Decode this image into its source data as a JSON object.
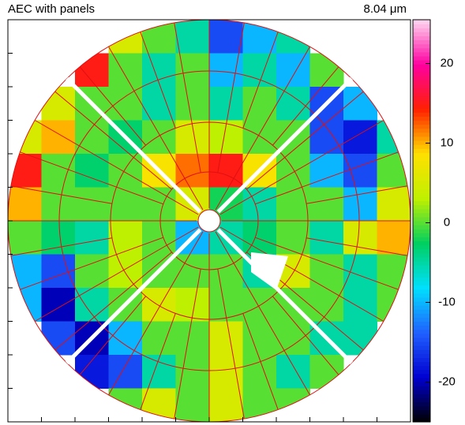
{
  "chart_data": {
    "type": "heatmap",
    "title": "AEC with panels",
    "subtitle": "8.04 μm",
    "z": [
      [
        null,
        null,
        null,
        5,
        0,
        -5,
        -15,
        -10,
        -5,
        null,
        null,
        null
      ],
      [
        null,
        null,
        15,
        0,
        -5,
        0,
        -10,
        -5,
        -10,
        0,
        null,
        null
      ],
      [
        null,
        5,
        0,
        0,
        -5,
        0,
        -5,
        0,
        -5,
        -15,
        -10,
        null
      ],
      [
        5,
        10,
        0,
        -3,
        0,
        5,
        3,
        0,
        0,
        -15,
        -18,
        -5
      ],
      [
        15,
        0,
        -3,
        0,
        8,
        12,
        15,
        8,
        0,
        -10,
        -15,
        0
      ],
      [
        10,
        0,
        0,
        0,
        0,
        5,
        -2,
        -5,
        0,
        0,
        -10,
        5
      ],
      [
        0,
        -3,
        -5,
        3,
        0,
        -10,
        -5,
        -3,
        0,
        -5,
        5,
        10
      ],
      [
        -10,
        -15,
        0,
        3,
        0,
        0,
        0,
        -5,
        5,
        0,
        -5,
        0
      ],
      [
        -10,
        -20,
        -5,
        0,
        5,
        3,
        0,
        0,
        0,
        0,
        -5,
        0
      ],
      [
        null,
        -15,
        -20,
        -10,
        0,
        0,
        5,
        0,
        0,
        -5,
        -5,
        null
      ],
      [
        null,
        null,
        -18,
        -15,
        -5,
        0,
        5,
        0,
        -5,
        0,
        null,
        null
      ],
      [
        null,
        null,
        null,
        0,
        5,
        0,
        5,
        0,
        0,
        null,
        null,
        null
      ]
    ],
    "zlim": [
      -25,
      25.5
    ],
    "zticks": [
      -20,
      -10,
      0,
      10,
      20
    ],
    "colormap": [
      "#000000",
      "#0000d0",
      "#2060ff",
      "#00e0ff",
      "#00d060",
      "#c0f000",
      "#ffe000",
      "#ff2000",
      "#ff00a0",
      "#ffd8f0"
    ]
  }
}
